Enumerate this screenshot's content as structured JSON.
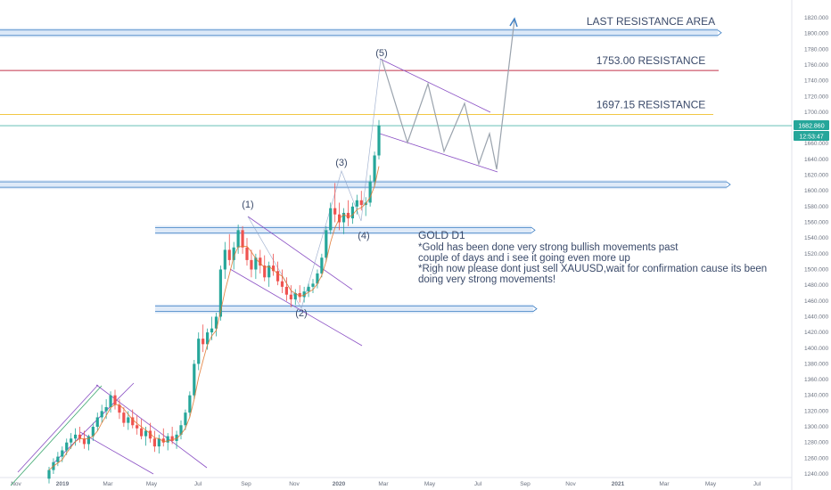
{
  "chart_data": {
    "type": "candlestick",
    "symbol": "XAUUSD",
    "timeframe": "D1",
    "y_range": [
      1240,
      1820
    ],
    "y_ticks": [
      "1820.000",
      "1800.000",
      "1780.000",
      "1760.000",
      "1740.000",
      "1720.000",
      "1700.000",
      "1680.000",
      "1660.000",
      "1640.000",
      "1620.000",
      "1600.000",
      "1580.000",
      "1560.000",
      "1540.000",
      "1520.000",
      "1500.000",
      "1480.000",
      "1460.000",
      "1440.000",
      "1420.000",
      "1400.000",
      "1380.000",
      "1360.000",
      "1340.000",
      "1320.000",
      "1300.000",
      "1280.000",
      "1260.000",
      "1240.000"
    ],
    "x_ticks": [
      "Nov",
      "2019",
      "Mar",
      "May",
      "Jul",
      "Sep",
      "Nov",
      "2020",
      "Mar",
      "May",
      "Jul",
      "Sep",
      "Nov",
      "2021",
      "Mar",
      "May",
      "Jul"
    ],
    "price_label": "1682.860",
    "time_label": "12:53:47",
    "resistance_lines": [
      {
        "label": "LAST RESISTANCE AREA",
        "price": 1801,
        "color": "#3d7fc4"
      },
      {
        "label": "1753.00 RESISTANCE",
        "price": 1753,
        "color": "#c2334a"
      },
      {
        "label": "1697.15 RESISTANCE",
        "price": 1697.15,
        "color": "#f2c744"
      }
    ],
    "support_zones": [
      1608,
      1550,
      1450
    ],
    "wave_labels": [
      "(1)",
      "(2)",
      "(3)",
      "(4)",
      "(5)"
    ],
    "candles": [
      [
        1234,
        1249,
        1228,
        1245
      ],
      [
        1245,
        1260,
        1240,
        1255
      ],
      [
        1255,
        1268,
        1250,
        1262
      ],
      [
        1262,
        1275,
        1255,
        1270
      ],
      [
        1270,
        1285,
        1264,
        1280
      ],
      [
        1280,
        1292,
        1272,
        1285
      ],
      [
        1285,
        1298,
        1276,
        1290
      ],
      [
        1290,
        1300,
        1280,
        1285
      ],
      [
        1285,
        1295,
        1272,
        1278
      ],
      [
        1278,
        1290,
        1270,
        1288
      ],
      [
        1288,
        1305,
        1282,
        1300
      ],
      [
        1300,
        1318,
        1295,
        1312
      ],
      [
        1312,
        1328,
        1305,
        1320
      ],
      [
        1320,
        1335,
        1310,
        1325
      ],
      [
        1325,
        1345,
        1318,
        1340
      ],
      [
        1340,
        1347,
        1322,
        1328
      ],
      [
        1328,
        1335,
        1310,
        1318
      ],
      [
        1318,
        1325,
        1300,
        1305
      ],
      [
        1305,
        1320,
        1296,
        1312
      ],
      [
        1312,
        1322,
        1298,
        1302
      ],
      [
        1302,
        1315,
        1290,
        1298
      ],
      [
        1298,
        1310,
        1284,
        1288
      ],
      [
        1288,
        1300,
        1276,
        1295
      ],
      [
        1295,
        1305,
        1280,
        1285
      ],
      [
        1285,
        1295,
        1268,
        1275
      ],
      [
        1275,
        1290,
        1266,
        1285
      ],
      [
        1285,
        1298,
        1275,
        1280
      ],
      [
        1280,
        1292,
        1270,
        1288
      ],
      [
        1288,
        1300,
        1278,
        1282
      ],
      [
        1282,
        1295,
        1272,
        1290
      ],
      [
        1290,
        1308,
        1284,
        1302
      ],
      [
        1302,
        1322,
        1296,
        1318
      ],
      [
        1318,
        1345,
        1312,
        1340
      ],
      [
        1340,
        1385,
        1335,
        1380
      ],
      [
        1380,
        1420,
        1372,
        1412
      ],
      [
        1412,
        1430,
        1395,
        1405
      ],
      [
        1405,
        1425,
        1398,
        1420
      ],
      [
        1420,
        1440,
        1410,
        1425
      ],
      [
        1425,
        1445,
        1415,
        1440
      ],
      [
        1440,
        1505,
        1435,
        1500
      ],
      [
        1500,
        1535,
        1488,
        1525
      ],
      [
        1525,
        1545,
        1505,
        1512
      ],
      [
        1512,
        1535,
        1500,
        1528
      ],
      [
        1528,
        1557,
        1520,
        1550
      ],
      [
        1550,
        1555,
        1520,
        1528
      ],
      [
        1528,
        1540,
        1505,
        1512
      ],
      [
        1512,
        1525,
        1490,
        1500
      ],
      [
        1500,
        1520,
        1488,
        1515
      ],
      [
        1515,
        1525,
        1495,
        1505
      ],
      [
        1505,
        1518,
        1485,
        1490
      ],
      [
        1490,
        1510,
        1478,
        1505
      ],
      [
        1505,
        1520,
        1492,
        1498
      ],
      [
        1498,
        1510,
        1480,
        1485
      ],
      [
        1485,
        1500,
        1470,
        1478
      ],
      [
        1478,
        1490,
        1460,
        1468
      ],
      [
        1468,
        1480,
        1452,
        1462
      ],
      [
        1462,
        1475,
        1455,
        1470
      ],
      [
        1470,
        1480,
        1458,
        1465
      ],
      [
        1465,
        1478,
        1458,
        1472
      ],
      [
        1472,
        1482,
        1465,
        1478
      ],
      [
        1478,
        1488,
        1470,
        1482
      ],
      [
        1482,
        1500,
        1476,
        1495
      ],
      [
        1495,
        1520,
        1490,
        1515
      ],
      [
        1515,
        1555,
        1510,
        1550
      ],
      [
        1550,
        1585,
        1545,
        1578
      ],
      [
        1578,
        1610,
        1560,
        1570
      ],
      [
        1570,
        1585,
        1550,
        1560
      ],
      [
        1560,
        1578,
        1545,
        1572
      ],
      [
        1572,
        1588,
        1555,
        1565
      ],
      [
        1565,
        1585,
        1558,
        1580
      ],
      [
        1580,
        1595,
        1570,
        1588
      ],
      [
        1588,
        1600,
        1575,
        1582
      ],
      [
        1582,
        1592,
        1568,
        1585
      ],
      [
        1585,
        1620,
        1580,
        1612
      ],
      [
        1612,
        1650,
        1605,
        1645
      ],
      [
        1645,
        1690,
        1640,
        1683
      ]
    ]
  },
  "annotation": {
    "title": "GOLD D1",
    "lines": [
      "*Gold has been done very strong bullish movements past",
      "couple of days and i see it going even more up",
      "*Righ now please dont just sell XAUUSD,wait for confirmation cause its been",
      "doing very strong movements!"
    ]
  },
  "colors": {
    "bull": "#26a69a",
    "bear": "#ef5350",
    "zone_fill": "#dbe8f7",
    "zone_line": "#3d7fc4",
    "channel": "#8a4fc4",
    "projection": "#9aa3ad",
    "price_bg": "#26a69a"
  }
}
